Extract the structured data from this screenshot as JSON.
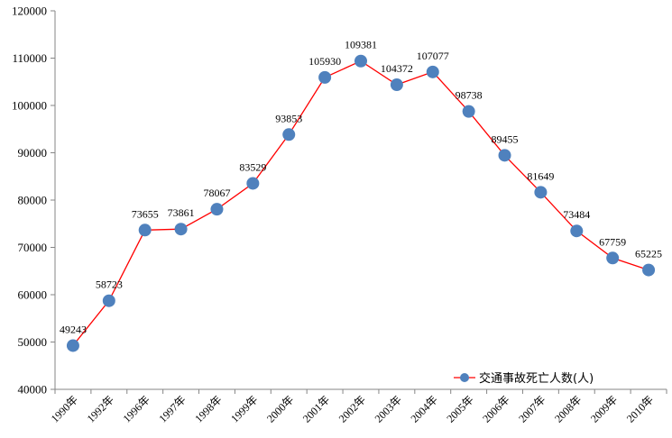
{
  "chart_data": {
    "type": "line",
    "title": "",
    "xlabel": "",
    "ylabel": "",
    "categories": [
      "1990年",
      "1992年",
      "1996年",
      "1997年",
      "1998年",
      "1999年",
      "2000年",
      "2001年",
      "2002年",
      "2003年",
      "2004年",
      "2005年",
      "2006年",
      "2007年",
      "2008年",
      "2009年",
      "2010年"
    ],
    "series": [
      {
        "name": "交通事故死亡人数(人)",
        "values": [
          49243,
          58723,
          73655,
          73861,
          78067,
          83529,
          93853,
          105930,
          109381,
          104372,
          107077,
          98738,
          89455,
          81649,
          73484,
          67759,
          65225
        ],
        "line_color": "#FF0000",
        "marker_color": "#4F81BD"
      }
    ],
    "ylim": [
      40000,
      120000
    ],
    "yticks": [
      40000,
      50000,
      60000,
      70000,
      80000,
      90000,
      100000,
      110000,
      120000
    ],
    "grid": false,
    "legend_position": "bottom-right",
    "data_labels": true
  }
}
